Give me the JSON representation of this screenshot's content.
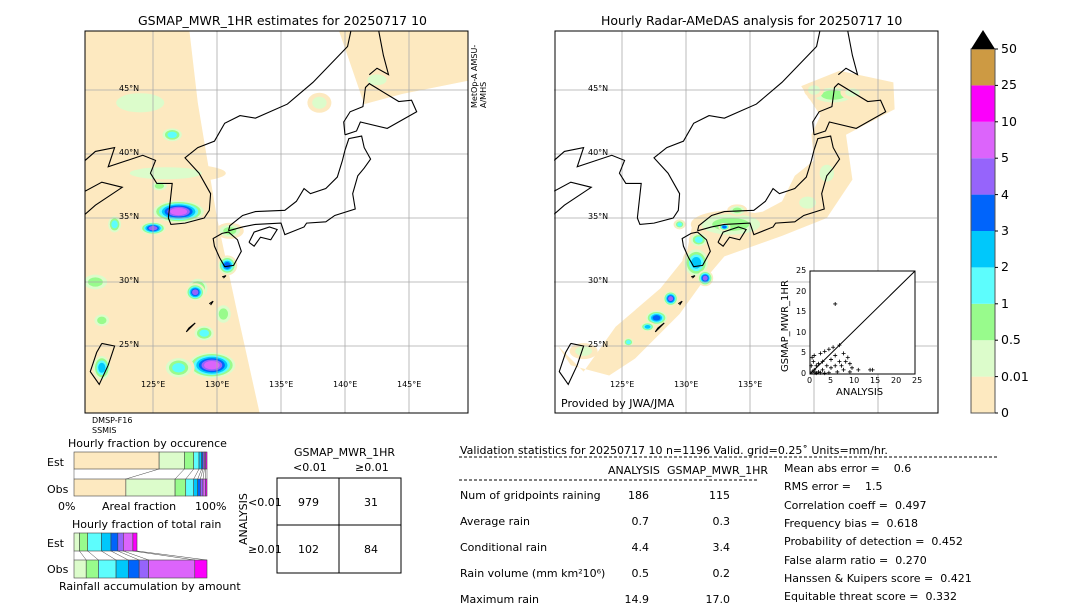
{
  "left_map": {
    "title": "GSMAP_MWR_1HR estimates for 20250717 10",
    "satellite_top_right": "MetOp-A AMSU-A/MHS",
    "satellite_bottom_left_1": "DMSP-F16",
    "satellite_bottom_left_2": "SSMIS",
    "lat_labels": [
      "45°N",
      "40°N",
      "35°N",
      "30°N",
      "25°N"
    ],
    "lon_labels": [
      "125°E",
      "130°E",
      "135°E",
      "140°E",
      "145°E"
    ]
  },
  "right_map": {
    "title": "Hourly Radar-AMeDAS analysis for 20250717 10",
    "credit": "Provided by JWA/JMA",
    "lat_labels": [
      "45°N",
      "40°N",
      "35°N",
      "30°N",
      "25°N"
    ],
    "lon_labels": [
      "125°E",
      "130°E",
      "135°E"
    ]
  },
  "colorbar": {
    "ticks": [
      "0",
      "0.01",
      "0.5",
      "1",
      "2",
      "3",
      "4",
      "5",
      "10",
      "25",
      "50"
    ],
    "colors": [
      "#fde9c0",
      "#dcfccb",
      "#98fb8c",
      "#5dfdfd",
      "#00c8fb",
      "#0064fb",
      "#9664fb",
      "#dc64fb",
      "#fb00fb",
      "#cd9a43"
    ]
  },
  "chart_data": {
    "type": "scatter",
    "xlabel": "ANALYSIS",
    "ylabel": "GSMAP_MWR_1HR",
    "xlim": [
      0,
      25
    ],
    "ylim": [
      0,
      25
    ],
    "xticks": [
      "0",
      "5",
      "10",
      "15",
      "20",
      "25"
    ],
    "yticks": [
      "0",
      "5",
      "10",
      "15",
      "20",
      "25"
    ],
    "points": [
      [
        6,
        17
      ],
      [
        14.3,
        1
      ],
      [
        14.9,
        1
      ],
      [
        11.5,
        1
      ],
      [
        9.5,
        2.5
      ],
      [
        10,
        1.5
      ],
      [
        9,
        4
      ],
      [
        8,
        5
      ],
      [
        7,
        7
      ],
      [
        5.5,
        6.5
      ],
      [
        4.5,
        6
      ],
      [
        3.5,
        5.5
      ],
      [
        2.5,
        5
      ],
      [
        1,
        4.5
      ],
      [
        0.5,
        4
      ],
      [
        3,
        3
      ],
      [
        2,
        2.5
      ],
      [
        1.5,
        2
      ],
      [
        1,
        1
      ],
      [
        0.5,
        0.5
      ],
      [
        2,
        0.5
      ],
      [
        3,
        1
      ],
      [
        4,
        2
      ],
      [
        5,
        1.5
      ],
      [
        6,
        2
      ],
      [
        7,
        3
      ],
      [
        8,
        1
      ],
      [
        6.5,
        0.5
      ],
      [
        4.5,
        0.3
      ],
      [
        3.5,
        0.2
      ],
      [
        2.5,
        0.3
      ],
      [
        1.5,
        0.2
      ],
      [
        0.3,
        2
      ],
      [
        0.8,
        3
      ],
      [
        1.2,
        0.3
      ],
      [
        5,
        3.5
      ],
      [
        6,
        4.5
      ],
      [
        7.5,
        2
      ],
      [
        8.5,
        3
      ],
      [
        9.5,
        0.5
      ]
    ]
  },
  "occurrence": {
    "title": "Hourly fraction by occurence",
    "est_label": "Est",
    "obs_label": "Obs",
    "xlabel": "Areal fraction",
    "x_min": "0%",
    "x_max": "100%",
    "est": [
      64,
      19,
      7,
      4,
      2,
      1,
      1,
      1,
      1
    ],
    "obs": [
      39,
      37,
      8,
      6,
      3,
      2,
      2,
      2,
      1
    ]
  },
  "total_rain": {
    "title": "Hourly fraction of total rain",
    "est_label": "Est",
    "obs_label": "Obs",
    "xlabel": "Rainfall accumulation by amount",
    "est": [
      4,
      6,
      10,
      7,
      5,
      4,
      7,
      3
    ],
    "obs": [
      9,
      9,
      13,
      9,
      8,
      7,
      34,
      9
    ]
  },
  "contingency": {
    "col_title": "GSMAP_MWR_1HR",
    "col_lt": "<0.01",
    "col_ge": "≥0.01",
    "row_title": "ANALYSIS",
    "row_lt": "<0.01",
    "row_ge": "≥0.01",
    "cells": [
      "979",
      "31",
      "102",
      "84"
    ]
  },
  "stats": {
    "header": "Validation statistics for 20250717 10  n=1196 Valid. grid=0.25˚ Units=mm/hr.",
    "col_analysis": "ANALYSIS",
    "col_gsmap": "GSMAP_MWR_1HR",
    "rows": [
      {
        "label": "Num of gridpoints raining",
        "a": "186",
        "g": "115"
      },
      {
        "label": "Average rain",
        "a": "0.7",
        "g": "0.3"
      },
      {
        "label": "Conditional rain",
        "a": "4.4",
        "g": "3.4"
      },
      {
        "label": "Rain volume (mm km²10⁶)",
        "a": "0.5",
        "g": "0.2"
      },
      {
        "label": "Maximum rain",
        "a": "14.9",
        "g": "17.0"
      }
    ],
    "scores": [
      "Mean abs error =    0.6",
      "RMS error =    1.5",
      "Correlation coeff =  0.497",
      "Frequency bias =  0.618",
      "Probability of detection =  0.452",
      "False alarm ratio =  0.270",
      "Hanssen & Kuipers score =  0.421",
      "Equitable threat score =  0.332"
    ]
  }
}
